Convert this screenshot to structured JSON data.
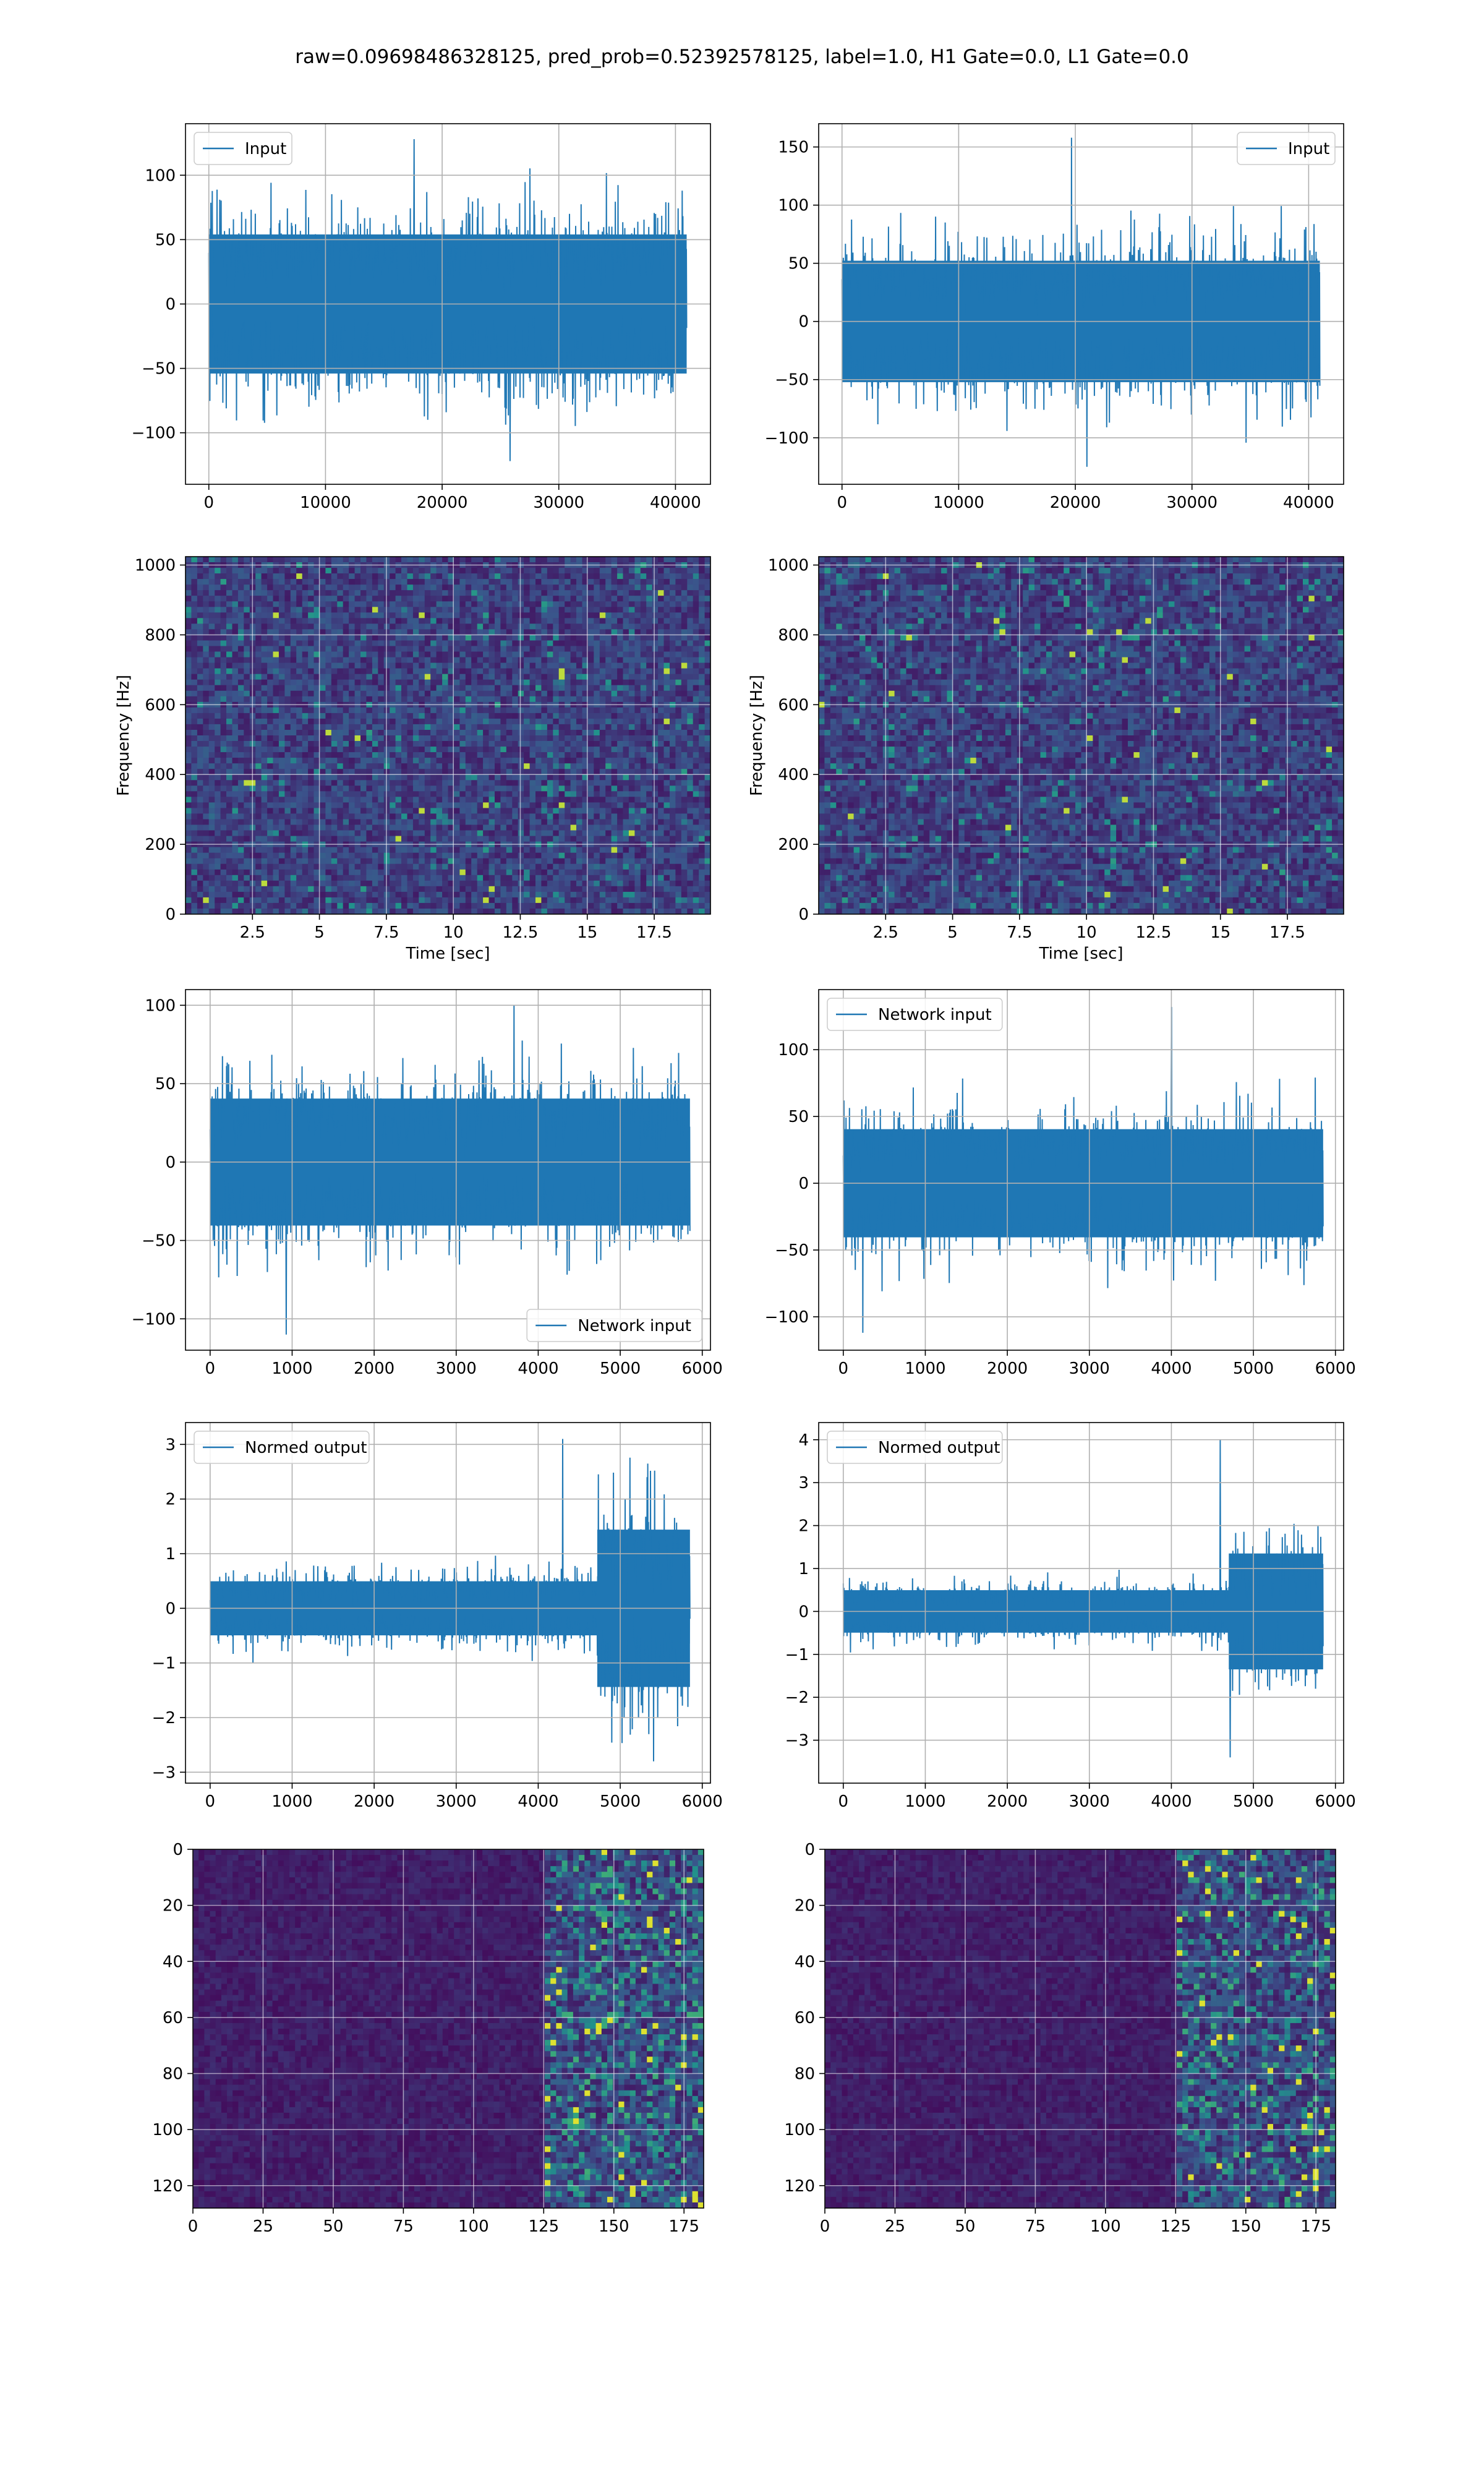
{
  "figure": {
    "title": "raw=0.09698486328125, pred_prob=0.52392578125, label=1.0, H1 Gate=0.0, L1 Gate=0.0",
    "line_color": "#1f77b4"
  },
  "chart_data": [
    {
      "type": "line",
      "series": [
        {
          "name": "Input",
          "amplitude": 60,
          "peak_high": 128,
          "peak_low": -122
        }
      ],
      "xlim": [
        -2000,
        43000
      ],
      "ylim": [
        -140,
        140
      ],
      "xticks": [
        0,
        10000,
        20000,
        30000,
        40000
      ],
      "yticks": [
        -100,
        -50,
        0,
        50,
        100
      ],
      "x_start": 0,
      "x_end": 40960,
      "legend": "upper left",
      "grid": true,
      "xlabel": "",
      "ylabel": ""
    },
    {
      "type": "line",
      "series": [
        {
          "name": "Input",
          "amplitude": 58,
          "peak_high": 158,
          "peak_low": -125
        }
      ],
      "xlim": [
        -2000,
        43000
      ],
      "ylim": [
        -140,
        170
      ],
      "xticks": [
        0,
        10000,
        20000,
        30000,
        40000
      ],
      "yticks": [
        -100,
        -50,
        0,
        50,
        100,
        150
      ],
      "x_start": 0,
      "x_end": 40960,
      "legend": "upper right",
      "grid": true,
      "xlabel": "",
      "ylabel": ""
    },
    {
      "type": "heatmap",
      "colormap": "viridis",
      "xlim": [
        0,
        19.6
      ],
      "ylim": [
        0,
        1024
      ],
      "xticks": [
        2.5,
        5.0,
        7.5,
        10.0,
        12.5,
        15.0,
        17.5
      ],
      "yticks": [
        0,
        200,
        400,
        600,
        800,
        1000
      ],
      "xlabel": "Time [sec]",
      "ylabel": "Frequency [Hz]",
      "grid": true
    },
    {
      "type": "heatmap",
      "colormap": "viridis",
      "xlim": [
        0,
        19.6
      ],
      "ylim": [
        0,
        1024
      ],
      "xticks": [
        2.5,
        5.0,
        7.5,
        10.0,
        12.5,
        15.0,
        17.5
      ],
      "yticks": [
        0,
        200,
        400,
        600,
        800,
        1000
      ],
      "xlabel": "Time [sec]",
      "ylabel": "Frequency [Hz]",
      "grid": true
    },
    {
      "type": "line",
      "series": [
        {
          "name": "Network input",
          "amplitude": 45,
          "peak_high": 100,
          "peak_low": -110
        }
      ],
      "xlim": [
        -300,
        6100
      ],
      "ylim": [
        -120,
        110
      ],
      "xticks": [
        0,
        1000,
        2000,
        3000,
        4000,
        5000,
        6000
      ],
      "yticks": [
        -100,
        -50,
        0,
        50,
        100
      ],
      "x_start": 0,
      "x_end": 5850,
      "legend": "lower right",
      "grid": true,
      "xlabel": "",
      "ylabel": ""
    },
    {
      "type": "line",
      "series": [
        {
          "name": "Network input",
          "amplitude": 45,
          "peak_high": 132,
          "peak_low": -112
        }
      ],
      "xlim": [
        -300,
        6100
      ],
      "ylim": [
        -125,
        145
      ],
      "xticks": [
        0,
        1000,
        2000,
        3000,
        4000,
        5000,
        6000
      ],
      "yticks": [
        -100,
        -50,
        0,
        50,
        100
      ],
      "x_start": 0,
      "x_end": 5850,
      "legend": "upper left",
      "grid": true,
      "xlabel": "",
      "ylabel": ""
    },
    {
      "type": "line",
      "series": [
        {
          "name": "Normed output",
          "amplitude": 0.55,
          "amplitude_burst": 1.6,
          "burst_start": 4720,
          "peak_high": 3.1,
          "peak_low": -2.8
        }
      ],
      "xlim": [
        -300,
        6100
      ],
      "ylim": [
        -3.2,
        3.4
      ],
      "xticks": [
        0,
        1000,
        2000,
        3000,
        4000,
        5000,
        6000
      ],
      "yticks": [
        -3,
        -2,
        -1,
        0,
        1,
        2,
        3
      ],
      "x_start": 0,
      "x_end": 5850,
      "legend": "upper left",
      "grid": true,
      "xlabel": "",
      "ylabel": ""
    },
    {
      "type": "line",
      "series": [
        {
          "name": "Normed output",
          "amplitude": 0.55,
          "amplitude_burst": 1.5,
          "burst_start": 4700,
          "peak_high": 4.0,
          "peak_low": -3.4
        }
      ],
      "xlim": [
        -300,
        6100
      ],
      "ylim": [
        -4.0,
        4.4
      ],
      "xticks": [
        0,
        1000,
        2000,
        3000,
        4000,
        5000,
        6000
      ],
      "yticks": [
        -3,
        -2,
        -1,
        0,
        1,
        2,
        3,
        4
      ],
      "x_start": 0,
      "x_end": 5850,
      "legend": "upper left",
      "grid": true,
      "xlabel": "",
      "ylabel": ""
    },
    {
      "type": "heatmap",
      "colormap": "viridis",
      "xlim": [
        0,
        182
      ],
      "ylim": [
        128,
        0
      ],
      "xticks": [
        0,
        25,
        50,
        75,
        100,
        125,
        150,
        175
      ],
      "yticks": [
        0,
        20,
        40,
        60,
        80,
        100,
        120
      ],
      "xlabel": "",
      "ylabel": "",
      "grid": true,
      "bright_from_x": 125
    },
    {
      "type": "heatmap",
      "colormap": "viridis",
      "xlim": [
        0,
        182
      ],
      "ylim": [
        128,
        0
      ],
      "xticks": [
        0,
        25,
        50,
        75,
        100,
        125,
        150,
        175
      ],
      "yticks": [
        0,
        20,
        40,
        60,
        80,
        100,
        120
      ],
      "xlabel": "",
      "ylabel": "",
      "grid": true,
      "bright_from_x": 125
    }
  ]
}
